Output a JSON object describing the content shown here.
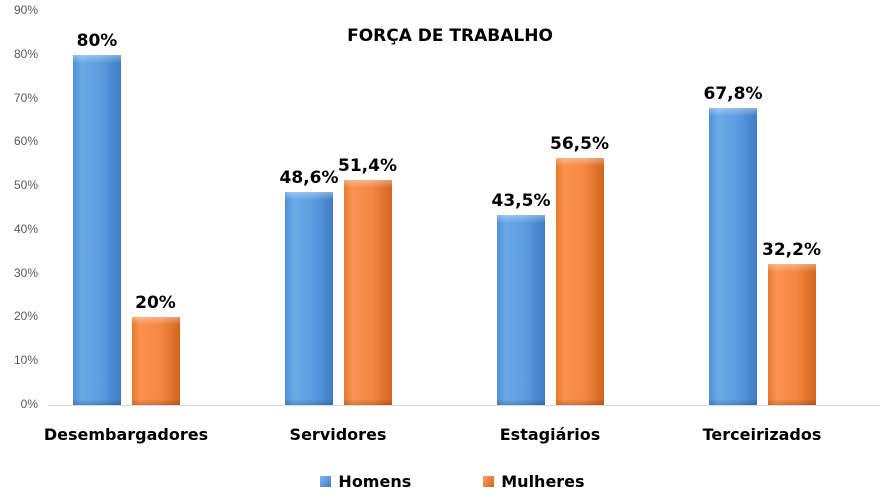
{
  "chart_data": {
    "type": "bar",
    "title": "FORÇA DE TRABALHO",
    "categories": [
      "Desembargadores",
      "Servidores",
      "Estagiários",
      "Terceirizados"
    ],
    "series": [
      {
        "name": "Homens",
        "color": "#5b9bd5",
        "values": [
          80,
          48.6,
          43.5,
          67.8
        ],
        "labels": [
          "80%",
          "48,6%",
          "43,5%",
          "67,8%"
        ]
      },
      {
        "name": "Mulheres",
        "color": "#ed7d31",
        "values": [
          20,
          51.4,
          56.5,
          32.2
        ],
        "labels": [
          "20%",
          "51,4%",
          "56,5%",
          "32,2%"
        ]
      }
    ],
    "xlabel": "",
    "ylabel": "",
    "ylim": [
      0,
      90
    ],
    "yticks": [
      "0%",
      "10%",
      "20%",
      "30%",
      "40%",
      "50%",
      "60%",
      "70%",
      "80%",
      "90%"
    ],
    "grid": false,
    "legend_position": "bottom"
  }
}
